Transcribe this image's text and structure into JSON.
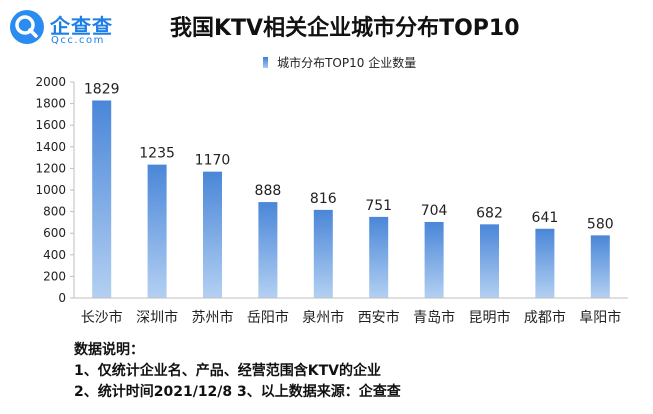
{
  "brand": {
    "name": "企查查",
    "sub": "Qcc.com",
    "icon": "qcc-logo-icon",
    "color": "#2a8cf0"
  },
  "chart_data": {
    "type": "bar",
    "title": "我国KTV相关企业城市分布TOP10",
    "xlabel": "",
    "ylabel": "",
    "legend": {
      "label": "城市分布TOP10 企业数量",
      "position": "top"
    },
    "categories": [
      "长沙市",
      "深圳市",
      "苏州市",
      "岳阳市",
      "泉州市",
      "西安市",
      "青岛市",
      "昆明市",
      "成都市",
      "阜阳市"
    ],
    "series": [
      {
        "name": "城市分布TOP10 企业数量",
        "values": [
          1829,
          1235,
          1170,
          888,
          816,
          751,
          704,
          682,
          641,
          580
        ]
      }
    ],
    "data_labels": [
      "1829",
      "1235",
      "1170",
      "888",
      "816",
      "751",
      "704",
      "682",
      "641",
      "580"
    ],
    "ylim": [
      0,
      2000
    ],
    "yticks": [
      "0",
      "200",
      "400",
      "600",
      "800",
      "1000",
      "1200",
      "1400",
      "1600",
      "1800",
      "2000"
    ],
    "grid": false,
    "bar_color": "#4a86d8",
    "bar_color_light": "#b3d0f2"
  },
  "notes": {
    "heading": "数据说明：",
    "line1": "1、仅统计企业名、产品、经营范围含KTV的企业",
    "line2": "2、统计时间2021/12/8   3、以上数据来源：企查查"
  }
}
